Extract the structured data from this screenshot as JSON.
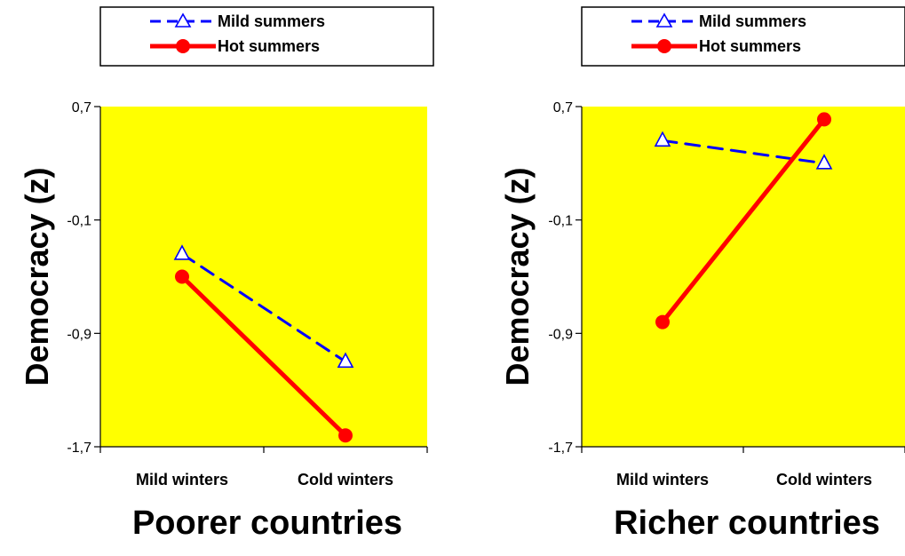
{
  "chart_data": [
    {
      "type": "line",
      "title": "Poorer countries",
      "ylabel": "Democracy (z)",
      "xlabel": "",
      "categories": [
        "Mild winters",
        "Cold winters"
      ],
      "yticks": [
        "0,7",
        "-0,1",
        "-0,9",
        "-1,7"
      ],
      "ytick_values": [
        0.7,
        -0.1,
        -0.9,
        -1.7
      ],
      "ylim": [
        -1.7,
        0.7
      ],
      "plot_background": "#ffff00",
      "legend_position": "top",
      "series": [
        {
          "name": "Mild summers",
          "values": [
            -0.34,
            -1.1
          ],
          "color": "#0000ff",
          "style": "dashed",
          "marker": "triangle-open"
        },
        {
          "name": "Hot summers",
          "values": [
            -0.5,
            -1.62
          ],
          "color": "#ff0000",
          "style": "solid",
          "marker": "circle-filled"
        }
      ]
    },
    {
      "type": "line",
      "title": "Richer countries",
      "ylabel": "Democracy (z)",
      "xlabel": "",
      "categories": [
        "Mild winters",
        "Cold winters"
      ],
      "yticks": [
        "0,7",
        "-0,1",
        "-0,9",
        "-1,7"
      ],
      "ytick_values": [
        0.7,
        -0.1,
        -0.9,
        -1.7
      ],
      "ylim": [
        -1.7,
        0.7
      ],
      "plot_background": "#ffff00",
      "legend_position": "top",
      "series": [
        {
          "name": "Mild summers",
          "values": [
            0.46,
            0.3
          ],
          "color": "#0000ff",
          "style": "dashed",
          "marker": "triangle-open"
        },
        {
          "name": "Hot summers",
          "values": [
            -0.82,
            0.61
          ],
          "color": "#ff0000",
          "style": "solid",
          "marker": "circle-filled"
        }
      ]
    }
  ]
}
